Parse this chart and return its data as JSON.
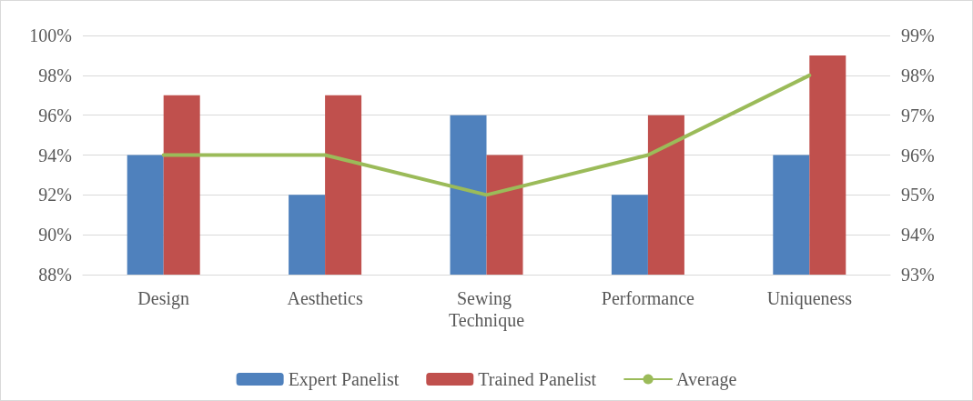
{
  "chart_data": {
    "type": "bar",
    "categories": [
      "Design",
      "Aesthetics",
      "Sewing Technique",
      "Performance",
      "Uniqueness"
    ],
    "series": [
      {
        "name": "Expert Panelist",
        "color": "#4f81bd",
        "values": [
          94,
          92,
          96,
          92,
          94
        ]
      },
      {
        "name": "Trained Panelist",
        "color": "#c0504d",
        "values": [
          97,
          97,
          94,
          96,
          99
        ]
      },
      {
        "name": "Average",
        "type": "line",
        "axis": "y2",
        "color": "#9bbb59",
        "values": [
          96,
          96,
          95,
          96,
          98
        ]
      }
    ],
    "ylim": [
      88,
      100
    ],
    "yticks": [
      {
        "value": 88,
        "label": "88%"
      },
      {
        "value": 90,
        "label": "90%"
      },
      {
        "value": 92,
        "label": "92%"
      },
      {
        "value": 94,
        "label": "94%"
      },
      {
        "value": 96,
        "label": "96%"
      },
      {
        "value": 98,
        "label": "98%"
      },
      {
        "value": 100,
        "label": "100%"
      }
    ],
    "y2lim": [
      93,
      99
    ],
    "y2ticks": [
      {
        "value": 93,
        "label": "93%"
      },
      {
        "value": 94,
        "label": "94%"
      },
      {
        "value": 95,
        "label": "95%"
      },
      {
        "value": 96,
        "label": "96%"
      },
      {
        "value": 97,
        "label": "97%"
      },
      {
        "value": 98,
        "label": "98%"
      },
      {
        "value": 99,
        "label": "99%"
      }
    ],
    "grid": "y",
    "legend": "bottom",
    "marker": "none",
    "line_style": "solid"
  }
}
